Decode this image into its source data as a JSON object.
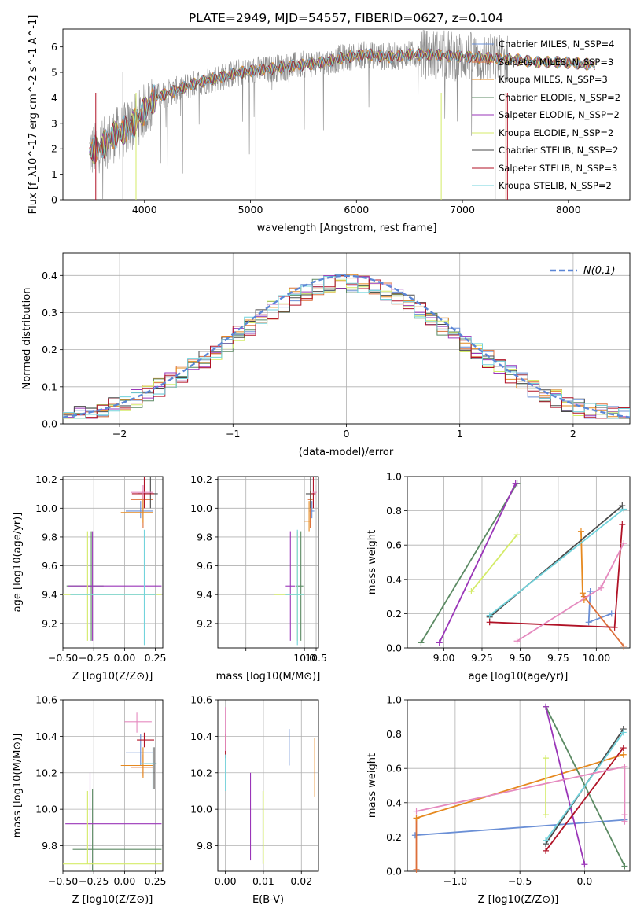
{
  "title": "PLATE=2949, MJD=54557, FIBERID=0627, z=0.104",
  "model_colors": [
    "#6a8fd6",
    "#dd6f3a",
    "#e6891f",
    "#5b8a63",
    "#9a35b8",
    "#d4eb68",
    "#4a4a4a",
    "#b01226",
    "#72d3dc"
  ],
  "pink": "#e58abf",
  "chart_data": [
    {
      "id": "spectrum",
      "type": "line",
      "xlabel": "wavelength [Angstrom, rest frame]",
      "ylabel": "Flux [f_λ10^-17 erg cm^-2 s^-1 A^-1]",
      "xlim": [
        3230,
        8580
      ],
      "ylim": [
        0,
        6.7
      ],
      "xticks": [
        4000,
        5000,
        6000,
        7000,
        8000
      ],
      "yticks": [
        0,
        1,
        2,
        3,
        4,
        5,
        6
      ],
      "grid": false,
      "legend_position": "right",
      "legend": [
        {
          "text": "Chabrier MILES, N_SSP=4",
          "color": "#6a8fd6"
        },
        {
          "text": "Salpeter MILES, N_SSP=3",
          "color": "#dd6f3a"
        },
        {
          "text": "Kroupa MILES, N_SSP=3",
          "color": "#e6891f"
        },
        {
          "text": "Chabrier ELODIE, N_SSP=2",
          "color": "#5b8a63"
        },
        {
          "text": "Salpeter ELODIE, N_SSP=2",
          "color": "#9a35b8"
        },
        {
          "text": "Kroupa ELODIE, N_SSP=2",
          "color": "#d4eb68"
        },
        {
          "text": "Chabrier STELIB, N_SSP=2",
          "color": "#4a4a4a"
        },
        {
          "text": "Salpeter STELIB, N_SSP=3",
          "color": "#b01226"
        },
        {
          "text": "Kroupa STELIB, N_SSP=2",
          "color": "#72d3dc"
        }
      ],
      "continuum_x": [
        3500,
        3600,
        3700,
        3800,
        3900,
        4000,
        4100,
        4300,
        4500,
        4700,
        4900,
        5100,
        5300,
        5500,
        5700,
        5900,
        6100,
        6300,
        6500,
        6700,
        6900,
        7100,
        7300,
        7500,
        7700,
        7900,
        8100,
        8250
      ],
      "continuum_y": [
        1.9,
        2.1,
        2.5,
        2.7,
        3.0,
        3.5,
        4.0,
        4.3,
        4.6,
        4.8,
        5.0,
        5.1,
        5.2,
        5.3,
        5.4,
        5.6,
        5.7,
        5.6,
        5.7,
        5.7,
        5.65,
        5.6,
        5.55,
        5.5,
        5.4,
        5.4,
        5.35,
        5.3
      ]
    },
    {
      "id": "residuals",
      "type": "histogram",
      "xlabel": "(data-model)/error",
      "ylabel": "Normed distribution",
      "xlim": [
        -2.5,
        2.5
      ],
      "ylim": [
        0,
        0.46
      ],
      "xticks": [
        -2,
        -1,
        0,
        1,
        2
      ],
      "xtick_labels": [
        "−2",
        "−1",
        "0",
        "1",
        "2"
      ],
      "yticks": [
        0.0,
        0.1,
        0.2,
        0.3,
        0.4
      ],
      "ytick_labels": [
        "0.0",
        "0.1",
        "0.2",
        "0.3",
        "0.4"
      ],
      "grid": true,
      "bin_width": 0.1,
      "legend": [
        {
          "text": "N(0,1)",
          "color": "#5b86d6",
          "style": "dashed"
        }
      ],
      "legend_position": "top-right"
    },
    {
      "id": "age_vs_Z",
      "type": "errorbar",
      "xlabel": "Z [log10(Z/Z⊙)]",
      "ylabel": "age [log10(age/yr)]",
      "xlim": [
        -0.5,
        0.31
      ],
      "ylim": [
        9.03,
        10.22
      ],
      "xticks": [
        -0.5,
        -0.25,
        0.0,
        0.25
      ],
      "xtick_labels": [
        "−0.50",
        "−0.25",
        "0.00",
        "0.25"
      ],
      "yticks": [
        9.2,
        9.4,
        9.6,
        9.8,
        10.0,
        10.2
      ],
      "ytick_labels": [
        "9.2",
        "9.4",
        "9.6",
        "9.8",
        "10.0",
        "10.2"
      ],
      "points": [
        {
          "x": 0.13,
          "y": 9.98,
          "xerr": [
            0.12,
            0.1
          ],
          "yerr": [
            0.05,
            0.07
          ],
          "color": "#6a8fd6"
        },
        {
          "x": 0.15,
          "y": 10.06,
          "xerr": [
            0.1,
            0.08
          ],
          "yerr": [
            0.2,
            0.06
          ],
          "color": "#dd6f3a"
        },
        {
          "x": 0.15,
          "y": 9.97,
          "xerr": [
            0.18,
            0.08
          ],
          "yerr": [
            0.07,
            0.14
          ],
          "color": "#e6891f"
        },
        {
          "x": -0.27,
          "y": 9.46,
          "xerr": [
            0.2,
            0.1
          ],
          "yerr": [
            0.38,
            0.38
          ],
          "color": "#5b8a63"
        },
        {
          "x": -0.26,
          "y": 9.46,
          "xerr": [
            0.2,
            0.56
          ],
          "yerr": [
            0.38,
            0.38
          ],
          "color": "#9a35b8"
        },
        {
          "x": -0.3,
          "y": 9.4,
          "xerr": [
            0.2,
            0.6
          ],
          "yerr": [
            0.32,
            0.44
          ],
          "color": "#d4eb68"
        },
        {
          "x": 0.21,
          "y": 10.1,
          "xerr": [
            0.1,
            0.06
          ],
          "yerr": [
            0.1,
            0.12
          ],
          "color": "#4a4a4a"
        },
        {
          "x": 0.16,
          "y": 10.1,
          "xerr": [
            0.1,
            0.08
          ],
          "yerr": [
            0.1,
            0.12
          ],
          "color": "#b01226"
        },
        {
          "x": 0.16,
          "y": 9.4,
          "xerr": [
            0.6,
            0.1
          ],
          "yerr": [
            0.35,
            0.45
          ],
          "color": "#72d3dc"
        },
        {
          "x": 0.15,
          "y": 10.11,
          "xerr": [
            0.1,
            0.08
          ],
          "yerr": [
            0.05,
            0.05
          ],
          "color": "#e58abf"
        }
      ]
    },
    {
      "id": "age_vs_mass",
      "type": "errorbar",
      "xlabel": "mass [log10(M/M⊙)]",
      "ylabel": "",
      "xlim": [
        6.3,
        10.6
      ],
      "ylim": [
        9.03,
        10.22
      ],
      "xticks": [
        7.5,
        10.0,
        10.5
      ],
      "xtick_labels": [
        "",
        "10.0",
        "10.5"
      ],
      "yticks": [
        9.2,
        9.4,
        9.6,
        9.8,
        10.0,
        10.2
      ],
      "ytick_labels": [
        "9.2",
        "9.4",
        "9.6",
        "9.8",
        "10.0",
        "10.2"
      ],
      "points": [
        {
          "x": 10.32,
          "y": 9.98,
          "xerr": [
            0.1,
            0.1
          ],
          "yerr": [
            0.05,
            0.07
          ],
          "color": "#6a8fd6"
        },
        {
          "x": 10.25,
          "y": 10.06,
          "xerr": [
            0.1,
            0.1
          ],
          "yerr": [
            0.2,
            0.06
          ],
          "color": "#dd6f3a"
        },
        {
          "x": 10.2,
          "y": 9.91,
          "xerr": [
            0.2,
            0.1
          ],
          "yerr": [
            0.07,
            0.14
          ],
          "color": "#e6891f"
        },
        {
          "x": 9.85,
          "y": 9.46,
          "xerr": [
            0.2,
            0.1
          ],
          "yerr": [
            0.38,
            0.38
          ],
          "color": "#5b8a63"
        },
        {
          "x": 9.4,
          "y": 9.46,
          "xerr": [
            0.2,
            0.2
          ],
          "yerr": [
            0.38,
            0.38
          ],
          "color": "#9a35b8"
        },
        {
          "x": 9.7,
          "y": 9.4,
          "xerr": [
            1.0,
            0.3
          ],
          "yerr": [
            0.32,
            0.44
          ],
          "color": "#d4eb68"
        },
        {
          "x": 10.26,
          "y": 10.1,
          "xerr": [
            0.2,
            0.1
          ],
          "yerr": [
            0.1,
            0.12
          ],
          "color": "#4a4a4a"
        },
        {
          "x": 10.38,
          "y": 10.1,
          "xerr": [
            0.1,
            0.1
          ],
          "yerr": [
            0.1,
            0.12
          ],
          "color": "#b01226"
        },
        {
          "x": 9.7,
          "y": 9.4,
          "xerr": [
            0.5,
            0.3
          ],
          "yerr": [
            0.35,
            0.45
          ],
          "color": "#72d3dc"
        },
        {
          "x": 10.45,
          "y": 10.11,
          "xerr": [
            0.1,
            0.08
          ],
          "yerr": [
            0.05,
            0.05
          ],
          "color": "#e58abf"
        }
      ]
    },
    {
      "id": "weight_vs_age",
      "type": "line",
      "xlabel": "age [log10(age/yr)]",
      "ylabel": "mass weight",
      "xlim": [
        8.76,
        10.22
      ],
      "ylim": [
        0,
        1
      ],
      "xticks": [
        9.0,
        9.25,
        9.5,
        9.75,
        10.0
      ],
      "xtick_labels": [
        "9.00",
        "9.25",
        "9.50",
        "9.75",
        "10.00"
      ],
      "yticks": [
        0,
        0.2,
        0.4,
        0.6,
        0.8,
        1.0
      ],
      "ytick_labels": [
        "0.0",
        "0.2",
        "0.4",
        "0.6",
        "0.8",
        "1.0"
      ],
      "series": [
        {
          "x": [
            9.96,
            9.95,
            10.1
          ],
          "y": [
            0.33,
            0.15,
            0.2
          ],
          "color": "#6a8fd6"
        },
        {
          "x": [
            9.92,
            10.18
          ],
          "y": [
            0.3,
            0.01
          ],
          "color": "#dd6f3a"
        },
        {
          "x": [
            9.9,
            9.91,
            9.92
          ],
          "y": [
            0.68,
            0.32,
            0.28
          ],
          "color": "#e6891f"
        },
        {
          "x": [
            8.85,
            9.48
          ],
          "y": [
            0.03,
            0.96
          ],
          "color": "#5b8a63"
        },
        {
          "x": [
            8.97,
            9.47
          ],
          "y": [
            0.03,
            0.96
          ],
          "color": "#9a35b8"
        },
        {
          "x": [
            9.18,
            9.48
          ],
          "y": [
            0.33,
            0.66
          ],
          "color": "#d4eb68"
        },
        {
          "x": [
            9.3,
            10.17
          ],
          "y": [
            0.18,
            0.83
          ],
          "color": "#4a4a4a"
        },
        {
          "x": [
            9.3,
            10.12,
            10.17
          ],
          "y": [
            0.15,
            0.12,
            0.72
          ],
          "color": "#b01226"
        },
        {
          "x": [
            9.3,
            10.18
          ],
          "y": [
            0.19,
            0.81
          ],
          "color": "#72d3dc"
        },
        {
          "x": [
            9.48,
            10.03,
            10.18
          ],
          "y": [
            0.04,
            0.35,
            0.61
          ],
          "color": "#e58abf"
        }
      ]
    },
    {
      "id": "mass_vs_Z",
      "type": "errorbar",
      "xlabel": "Z [log10(Z/Z⊙)]",
      "ylabel": "mass [log10(M/M⊙)]",
      "xlim": [
        -0.5,
        0.31
      ],
      "ylim": [
        9.66,
        10.6
      ],
      "xticks": [
        -0.5,
        -0.25,
        0.0,
        0.25
      ],
      "xtick_labels": [
        "−0.50",
        "−0.25",
        "0.00",
        "0.25"
      ],
      "yticks": [
        9.8,
        10.0,
        10.2,
        10.4,
        10.6
      ],
      "ytick_labels": [
        "9.8",
        "10.0",
        "10.2",
        "10.4",
        "10.6"
      ],
      "points": [
        {
          "x": 0.13,
          "y": 10.31,
          "xerr": [
            0.12,
            0.1
          ],
          "yerr": [
            0.07,
            0.1
          ],
          "color": "#6a8fd6"
        },
        {
          "x": 0.15,
          "y": 10.23,
          "xerr": [
            0.1,
            0.08
          ],
          "yerr": [
            0.05,
            0.07
          ],
          "color": "#dd6f3a"
        },
        {
          "x": 0.15,
          "y": 10.24,
          "xerr": [
            0.18,
            0.08
          ],
          "yerr": [
            0.07,
            0.1
          ],
          "color": "#e6891f"
        },
        {
          "x": -0.26,
          "y": 9.78,
          "xerr": [
            0.16,
            0.56
          ],
          "yerr": [
            0.12,
            0.33
          ],
          "color": "#5b8a63"
        },
        {
          "x": -0.28,
          "y": 9.92,
          "xerr": [
            0.2,
            0.58
          ],
          "yerr": [
            0.25,
            0.28
          ],
          "color": "#9a35b8"
        },
        {
          "x": -0.3,
          "y": 9.7,
          "xerr": [
            0.2,
            0.6
          ],
          "yerr": [
            0.0,
            0.4
          ],
          "color": "#d4eb68"
        },
        {
          "x": 0.24,
          "y": 10.25,
          "xerr": [
            0.08,
            0.02
          ],
          "yerr": [
            0.14,
            0.09
          ],
          "color": "#4a4a4a"
        },
        {
          "x": 0.16,
          "y": 10.38,
          "xerr": [
            0.06,
            0.08
          ],
          "yerr": [
            0.04,
            0.04
          ],
          "color": "#b01226"
        },
        {
          "x": 0.23,
          "y": 10.25,
          "xerr": [
            0.1,
            0.02
          ],
          "yerr": [
            0.14,
            0.09
          ],
          "color": "#72d3dc"
        },
        {
          "x": 0.1,
          "y": 10.48,
          "xerr": [
            0.1,
            0.12
          ],
          "yerr": [
            0.06,
            0.05
          ],
          "color": "#e58abf"
        }
      ]
    },
    {
      "id": "mass_vs_ebv",
      "type": "errorbar",
      "xlabel": "E(B-V)",
      "ylabel": "",
      "xlim": [
        -0.002,
        0.0245
      ],
      "ylim": [
        9.66,
        10.6
      ],
      "xticks": [
        0.0,
        0.01,
        0.02
      ],
      "xtick_labels": [
        "0.00",
        "0.01",
        "0.02"
      ],
      "yticks": [
        9.8,
        10.0,
        10.2,
        10.4,
        10.6
      ],
      "ytick_labels": [
        "9.8",
        "10.0",
        "10.2",
        "10.4",
        "10.6"
      ],
      "points": [
        {
          "x": 0.0168,
          "y": 10.31,
          "xerr": [
            0,
            0
          ],
          "yerr": [
            0.07,
            0.13
          ],
          "color": "#6a8fd6"
        },
        {
          "x": 0.0235,
          "y": 10.23,
          "xerr": [
            0,
            0
          ],
          "yerr": [
            0.16,
            0.16
          ],
          "color": "#e6891f"
        },
        {
          "x": 0.0099,
          "y": 9.9,
          "xerr": [
            0,
            0
          ],
          "yerr": [
            0.2,
            0.2
          ],
          "color": "#5b8a63"
        },
        {
          "x": 0.0066,
          "y": 9.96,
          "xerr": [
            0,
            0
          ],
          "yerr": [
            0.24,
            0.24
          ],
          "color": "#9a35b8"
        },
        {
          "x": 0.01,
          "y": 9.9,
          "xerr": [
            0,
            0
          ],
          "yerr": [
            0.2,
            0.2
          ],
          "color": "#d4eb68"
        },
        {
          "x": 0.0,
          "y": 10.34,
          "xerr": [
            0,
            0
          ],
          "yerr": [
            0.06,
            0.07
          ],
          "color": "#b01226"
        },
        {
          "x": 0.0,
          "y": 10.2,
          "xerr": [
            0,
            0
          ],
          "yerr": [
            0.1,
            0.1
          ],
          "color": "#72d3dc"
        },
        {
          "x": 0.0,
          "y": 10.44,
          "xerr": [
            0,
            0
          ],
          "yerr": [
            0.12,
            0.12
          ],
          "color": "#e58abf"
        }
      ]
    },
    {
      "id": "weight_vs_Z",
      "type": "line",
      "xlabel": "Z [log10(Z/Z⊙)]",
      "ylabel": "mass weight",
      "xlim": [
        -1.37,
        0.35
      ],
      "ylim": [
        0,
        1
      ],
      "xticks": [
        -1.0,
        -0.5,
        0.0
      ],
      "xtick_labels": [
        "−1.0",
        "−0.5",
        "0.0"
      ],
      "yticks": [
        0,
        0.2,
        0.4,
        0.6,
        0.8,
        1.0
      ],
      "ytick_labels": [
        "0.0",
        "0.2",
        "0.4",
        "0.6",
        "0.8",
        "1.0"
      ],
      "series": [
        {
          "x": [
            -1.31,
            0.31
          ],
          "y": [
            0.21,
            0.3
          ],
          "color": "#6a8fd6"
        },
        {
          "x": [
            -1.3,
            -1.3
          ],
          "y": [
            0.31,
            0.01
          ],
          "color": "#dd6f3a"
        },
        {
          "x": [
            -1.3,
            0.3
          ],
          "y": [
            0.31,
            0.68
          ],
          "color": "#e6891f"
        },
        {
          "x": [
            -0.3,
            0.31
          ],
          "y": [
            0.96,
            0.03
          ],
          "color": "#5b8a63"
        },
        {
          "x": [
            -0.3,
            0.0
          ],
          "y": [
            0.96,
            0.04
          ],
          "color": "#9a35b8"
        },
        {
          "x": [
            -0.3,
            -0.3
          ],
          "y": [
            0.33,
            0.66
          ],
          "color": "#d4eb68"
        },
        {
          "x": [
            -0.3,
            0.3
          ],
          "y": [
            0.16,
            0.83
          ],
          "color": "#4a4a4a"
        },
        {
          "x": [
            -0.3,
            0.3
          ],
          "y": [
            0.12,
            0.72
          ],
          "color": "#b01226"
        },
        {
          "x": [
            -0.3,
            0.3
          ],
          "y": [
            0.18,
            0.81
          ],
          "color": "#72d3dc"
        },
        {
          "x": [
            -1.3,
            0.31,
            0.31,
            0.31
          ],
          "y": [
            0.35,
            0.61,
            0.33,
            0.29
          ],
          "color": "#e58abf"
        }
      ]
    }
  ]
}
